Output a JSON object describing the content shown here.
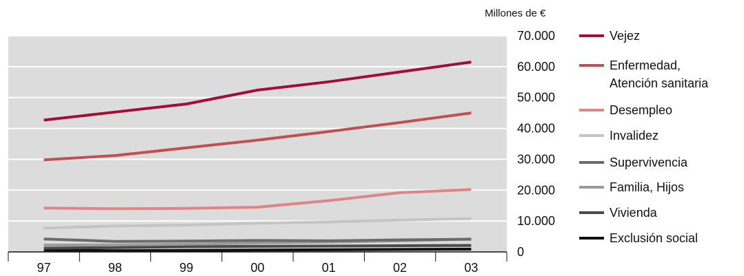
{
  "chart_data": {
    "type": "line",
    "ylabel": "Millones de €",
    "ylim": [
      0,
      70000
    ],
    "yticks": [
      "0",
      "10.000",
      "20.000",
      "30.000",
      "40.000",
      "50.000",
      "60.000",
      "70.000"
    ],
    "categories": [
      "97",
      "98",
      "99",
      "00",
      "01",
      "02",
      "03"
    ],
    "grid": true,
    "legend_position": "right",
    "series": [
      {
        "name": "Vejez",
        "legend_lines": [
          "Vejez"
        ],
        "color": "#a50d35",
        "values": [
          42700,
          45300,
          47900,
          52400,
          55100,
          58300,
          61500
        ]
      },
      {
        "name": "Enfermedad, Atención sanitaria",
        "legend_lines": [
          "Enfermedad,",
          "Atención sanitaria"
        ],
        "color": "#c24f52",
        "values": [
          29800,
          31200,
          33700,
          36200,
          39000,
          41900,
          45000
        ]
      },
      {
        "name": "Desempleo",
        "legend_lines": [
          "Desempleo"
        ],
        "color": "#df8585",
        "values": [
          14200,
          14000,
          14100,
          14500,
          16600,
          19200,
          20200
        ]
      },
      {
        "name": "Invalidez",
        "legend_lines": [
          "Invalidez"
        ],
        "color": "#c4c4c4",
        "values": [
          7700,
          8400,
          8700,
          9300,
          9700,
          10300,
          10800
        ]
      },
      {
        "name": "Supervivencia",
        "legend_lines": [
          "Supervivencia"
        ],
        "color": "#6b6b6b",
        "values": [
          4200,
          3400,
          3500,
          3700,
          3600,
          3900,
          4100
        ]
      },
      {
        "name": "Familia, Hijos",
        "legend_lines": [
          "Familia, Hijos"
        ],
        "color": "#9b9b9b",
        "values": [
          2200,
          2300,
          2500,
          2900,
          3200,
          3600,
          4200
        ]
      },
      {
        "name": "Vivienda",
        "legend_lines": [
          "Vivienda"
        ],
        "color": "#4a4a4a",
        "values": [
          1200,
          1400,
          1700,
          1800,
          1900,
          2000,
          2100
        ]
      },
      {
        "name": "Exclusión social",
        "legend_lines": [
          "Exclusión social"
        ],
        "color": "#111111",
        "values": [
          600,
          400,
          500,
          600,
          700,
          800,
          900
        ]
      }
    ]
  }
}
